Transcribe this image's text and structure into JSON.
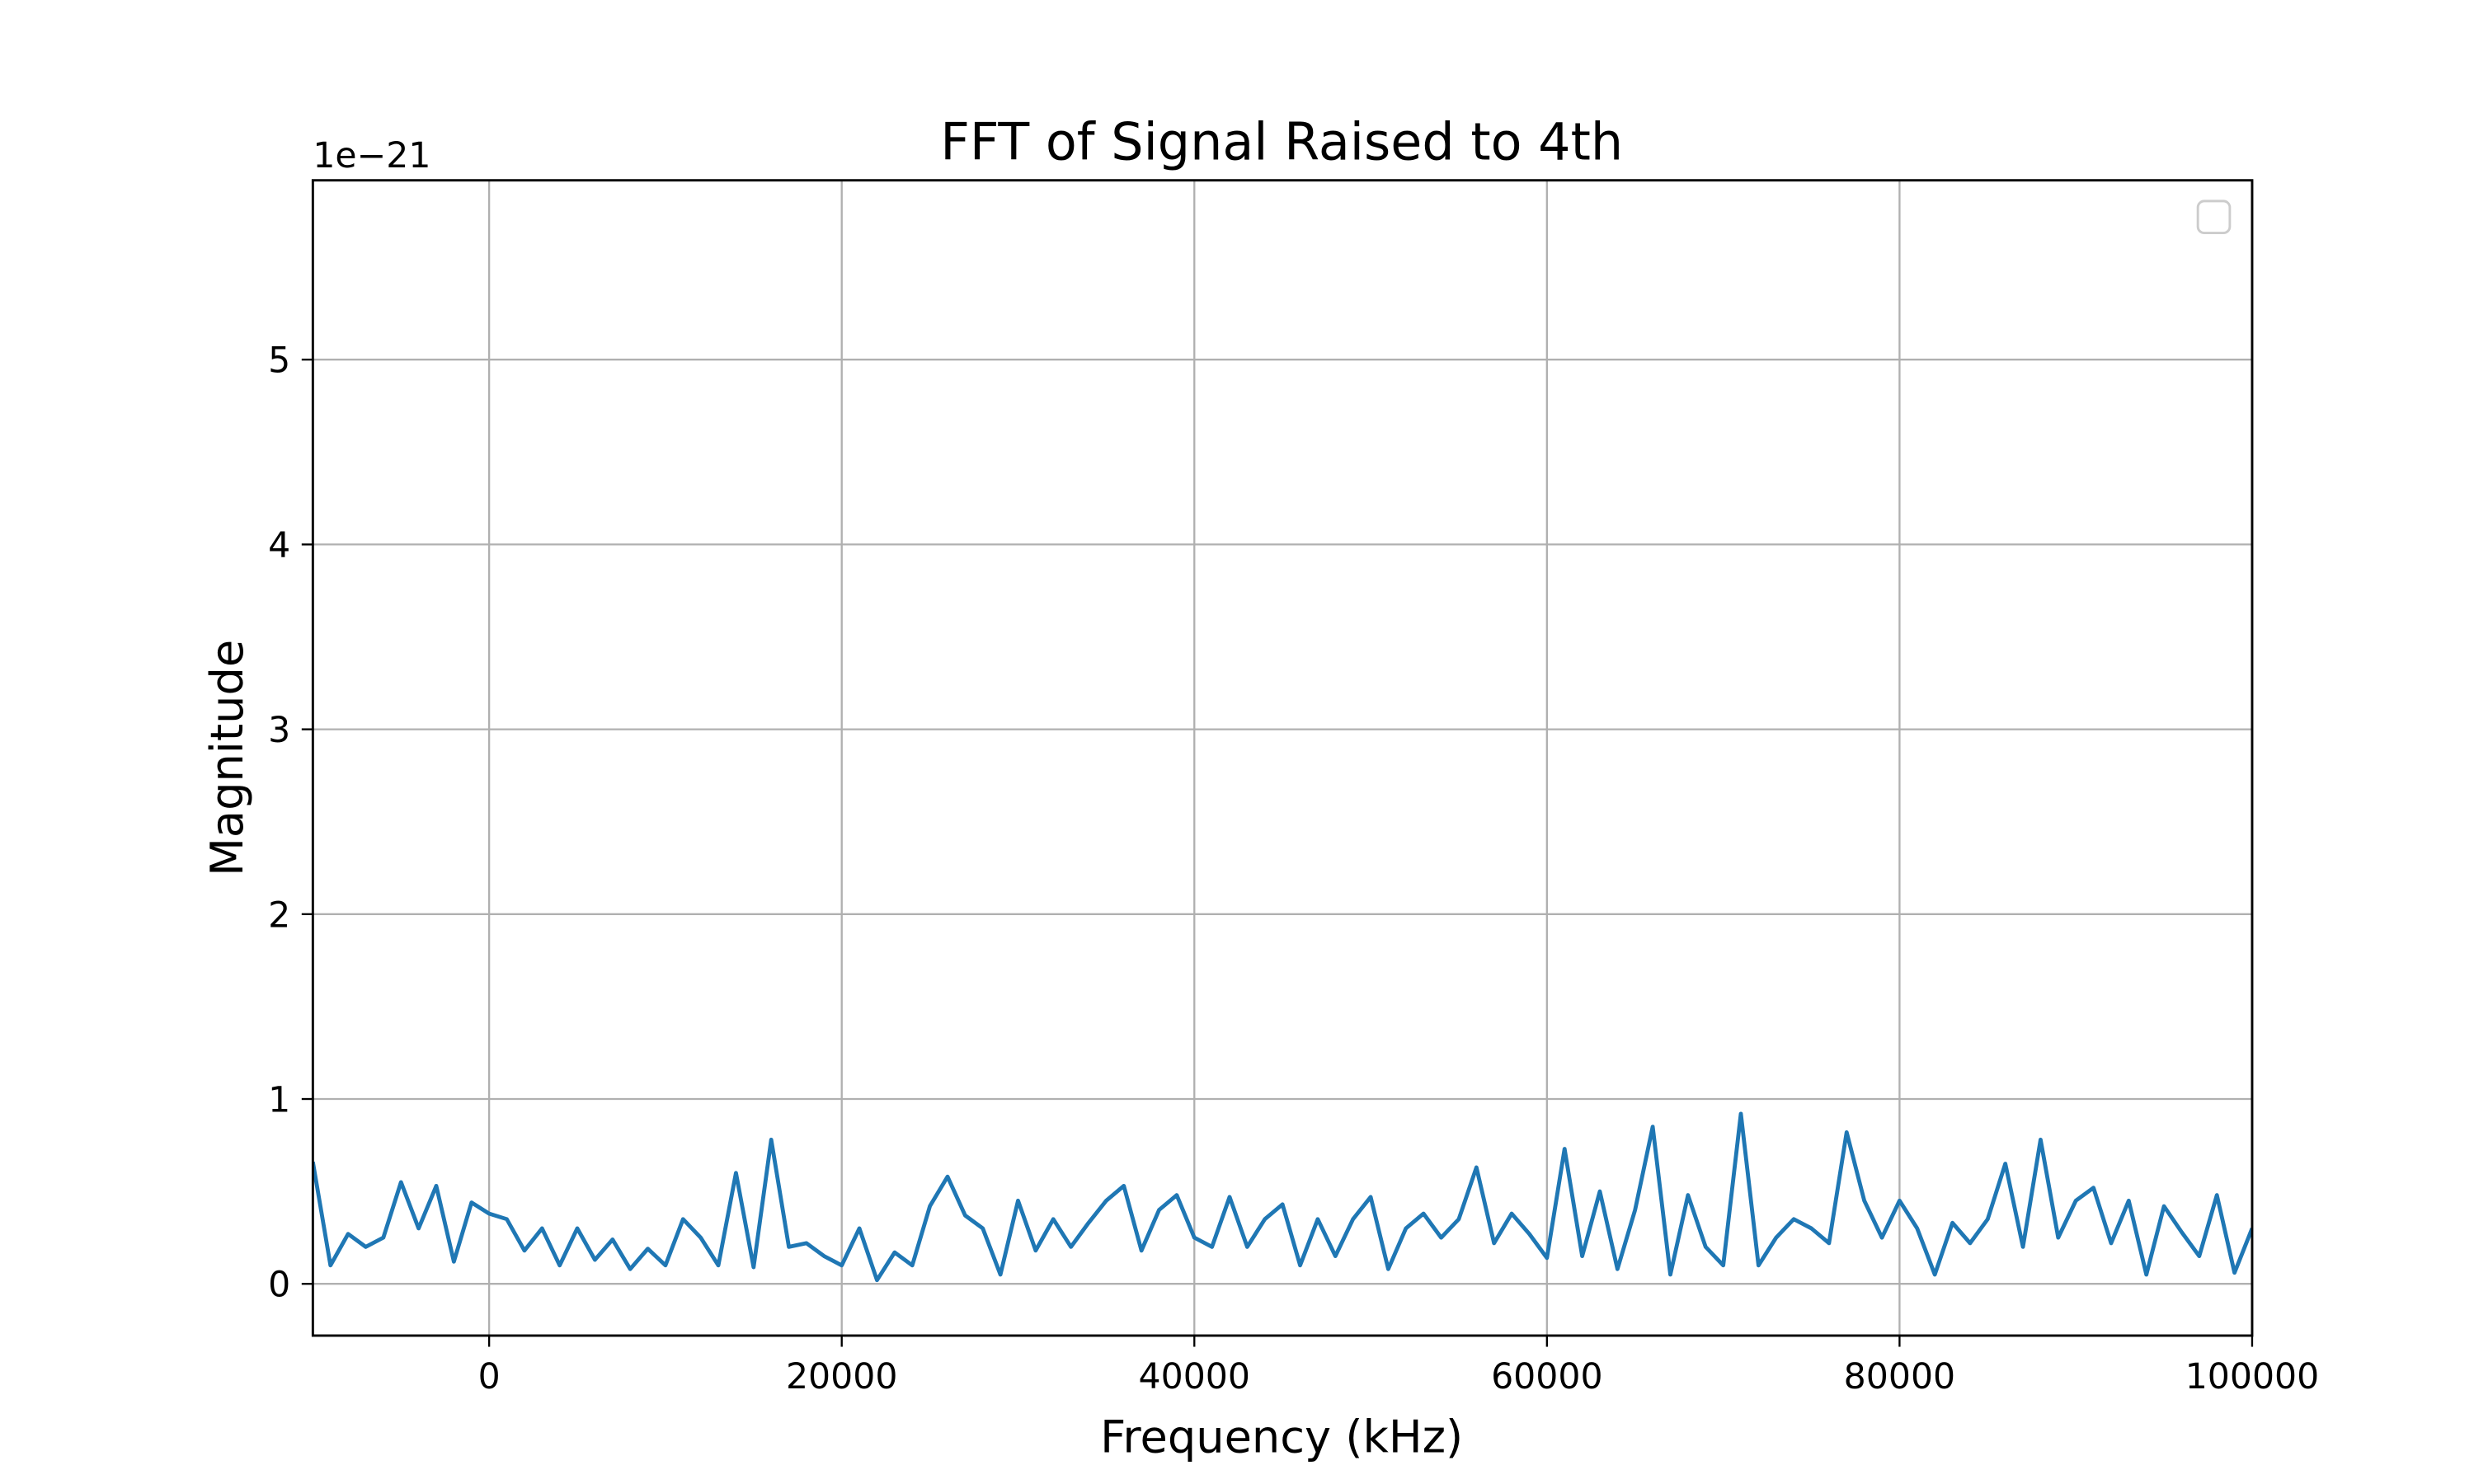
{
  "chart_data": {
    "type": "line",
    "title": "FFT of Signal Raised to 4th",
    "xlabel": "Frequency (kHz)",
    "ylabel": "Magnitude",
    "y_offset_label": "1e−21",
    "x": [
      -10000,
      -9000,
      -8000,
      -7000,
      -6000,
      -5000,
      -4000,
      -3000,
      -2000,
      -1000,
      0,
      1000,
      2000,
      3000,
      4000,
      5000,
      6000,
      7000,
      8000,
      9000,
      10000,
      11000,
      12000,
      13000,
      14000,
      15000,
      16000,
      17000,
      18000,
      19000,
      20000,
      21000,
      22000,
      23000,
      24000,
      25000,
      26000,
      27000,
      28000,
      29000,
      30000,
      31000,
      32000,
      33000,
      34000,
      35000,
      36000,
      37000,
      38000,
      39000,
      40000,
      41000,
      42000,
      43000,
      44000,
      45000,
      46000,
      47000,
      48000,
      49000,
      50000,
      51000,
      52000,
      53000,
      54000,
      55000,
      56000,
      57000,
      58000,
      59000,
      60000,
      61000,
      62000,
      63000,
      64000,
      65000,
      66000,
      67000,
      68000,
      69000,
      70000,
      71000,
      72000,
      73000,
      74000,
      75000,
      76000,
      77000,
      78000,
      79000,
      80000,
      81000,
      82000,
      83000,
      84000,
      85000,
      86000,
      87000,
      88000,
      89000,
      90000,
      91000,
      92000,
      93000,
      94000,
      95000,
      96000,
      97000,
      98000,
      99000,
      100000
    ],
    "series": [
      {
        "color": "#1f77b4",
        "values": [
          0.66,
          0.1,
          0.27,
          0.2,
          0.25,
          0.55,
          0.3,
          0.53,
          0.12,
          0.44,
          0.38,
          0.35,
          0.18,
          0.3,
          0.1,
          0.3,
          0.13,
          0.24,
          0.08,
          0.19,
          0.1,
          0.35,
          0.25,
          0.1,
          0.6,
          0.09,
          0.78,
          0.2,
          0.22,
          0.15,
          0.1,
          0.3,
          0.02,
          0.17,
          0.1,
          0.42,
          0.58,
          0.37,
          0.3,
          0.05,
          0.45,
          0.18,
          0.35,
          0.2,
          0.33,
          0.45,
          0.53,
          0.18,
          0.4,
          0.48,
          0.25,
          0.2,
          0.47,
          0.2,
          0.35,
          0.43,
          0.1,
          0.35,
          0.15,
          0.35,
          0.47,
          0.08,
          0.3,
          0.38,
          0.25,
          0.35,
          0.63,
          0.22,
          0.38,
          0.27,
          0.14,
          0.73,
          0.15,
          0.5,
          0.08,
          0.4,
          0.85,
          0.05,
          0.48,
          0.2,
          0.1,
          0.92,
          0.1,
          0.25,
          0.35,
          0.3,
          0.22,
          0.82,
          0.45,
          0.25,
          0.45,
          0.3,
          0.05,
          0.33,
          0.22,
          0.35,
          0.65,
          0.2,
          0.78,
          0.25,
          0.45,
          0.52,
          0.22,
          0.45,
          0.05,
          0.42,
          0.28,
          0.15,
          0.48,
          0.06,
          0.3
        ]
      }
    ],
    "xlim": [
      -10000,
      100000
    ],
    "xticks": [
      0,
      20000,
      40000,
      60000,
      80000,
      100000
    ],
    "ylim": [
      -0.28,
      5.97
    ],
    "yticks": [
      0,
      1,
      2,
      3,
      4,
      5
    ],
    "grid": true
  }
}
